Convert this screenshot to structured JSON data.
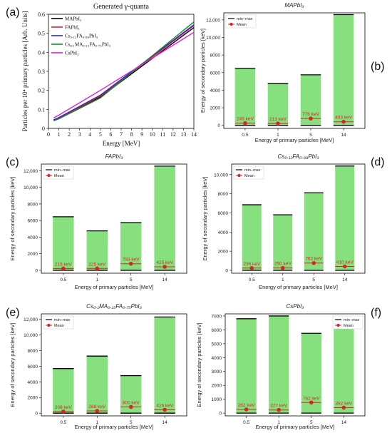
{
  "panel_labels": [
    "(a)",
    "(b)",
    "(c)",
    "(d)",
    "(e)",
    "(f)"
  ],
  "chart_data": [
    {
      "type": "line",
      "panel": "(a)",
      "title": "Generated γ-quanta",
      "xlabel": "Energy [MeV]",
      "ylabel": "Particles per 10⁴ primary particles [Arb. Units]",
      "xlim": [
        0,
        14
      ],
      "ylim": [
        0,
        0.6
      ],
      "xticks": [
        "0",
        "1",
        "2",
        "3",
        "4",
        "5",
        "6",
        "7",
        "8",
        "9",
        "10",
        "11",
        "12",
        "13",
        "14"
      ],
      "yticks": [
        "0",
        "0.1",
        "0.2",
        "0.3",
        "0.4",
        "0.5",
        "0.6"
      ],
      "grid": false,
      "legend_position": "top-left",
      "series": [
        {
          "name": "MAPbI₃",
          "color": "#000000",
          "x": [
            0.5,
            1,
            5,
            14
          ],
          "y": [
            0.045,
            0.055,
            0.165,
            0.53
          ]
        },
        {
          "name": "FAPbI₃",
          "color": "#e8202a",
          "x": [
            0.5,
            1,
            5,
            14
          ],
          "y": [
            0.042,
            0.053,
            0.17,
            0.54
          ]
        },
        {
          "name": "Cs₀.₁₂FA₀.₈₈PbI₃",
          "color": "#1f2bd4",
          "x": [
            0.5,
            1,
            5,
            14
          ],
          "y": [
            0.044,
            0.057,
            0.175,
            0.545
          ]
        },
        {
          "name": "Cs₀.₁MA₀.₁₅FA₀.₇₅PbI₃",
          "color": "#1a8a2a",
          "x": [
            0.5,
            1,
            5,
            14
          ],
          "y": [
            0.04,
            0.05,
            0.16,
            0.56
          ]
        },
        {
          "name": "CsPbI₃",
          "color": "#e020e0",
          "x": [
            0.5,
            1,
            5,
            14
          ],
          "y": [
            0.055,
            0.07,
            0.2,
            0.505
          ]
        }
      ]
    },
    {
      "type": "bar",
      "panel": "(b)",
      "title": "MAPbI₃",
      "xlabel": "Energy of primary particles [MeV]",
      "ylabel": "Energy of secondary particles [keV]",
      "categories": [
        "0.5",
        "1",
        "5",
        "14"
      ],
      "ylim": [
        -350,
        12800
      ],
      "yticks": [
        0,
        2000,
        4000,
        6000,
        8000,
        10000,
        12000
      ],
      "ytick_labels": [
        "0",
        "2000",
        "4000",
        "6000",
        "8000",
        "10,000",
        "12,000"
      ],
      "max": [
        6500,
        4750,
        5750,
        12600
      ],
      "min": [
        0,
        0,
        0,
        0
      ],
      "mean": [
        249,
        213,
        776,
        403
      ],
      "mean_labels": [
        "249 keV",
        "213 keV",
        "776 keV",
        "403 keV"
      ],
      "legend": [
        "min−max",
        "Mean"
      ],
      "legend_position": "top-left"
    },
    {
      "type": "bar",
      "panel": "(c)",
      "title": "FAPbI₃",
      "xlabel": "Energy of primary particles [MeV]",
      "ylabel": "Energy of secondary particles [keV]",
      "categories": [
        "0.5",
        "1",
        "5",
        "14"
      ],
      "ylim": [
        -350,
        12800
      ],
      "yticks": [
        0,
        2000,
        4000,
        6000,
        8000,
        10000,
        12000
      ],
      "ytick_labels": [
        "0",
        "2000",
        "4000",
        "6000",
        "8000",
        "10,000",
        "12,000"
      ],
      "max": [
        6450,
        4750,
        5750,
        12550
      ],
      "min": [
        0,
        0,
        0,
        0
      ],
      "mean": [
        215,
        225,
        793,
        425
      ],
      "mean_labels": [
        "215 keV",
        "225 keV",
        "793 keV",
        "425 keV"
      ],
      "legend": [
        "min−max",
        "Mean"
      ],
      "legend_position": "top-left"
    },
    {
      "type": "bar",
      "panel": "(d)",
      "title": "Cs₀.₁₂FA₀.₈₈PbI₃",
      "xlabel": "Energy of primary particles [MeV]",
      "ylabel": "Energy of secondary particles [keV]",
      "categories": [
        "0.5",
        "1",
        "5",
        "14"
      ],
      "ylim": [
        -300,
        11100
      ],
      "yticks": [
        0,
        2000,
        4000,
        6000,
        8000,
        10000
      ],
      "ytick_labels": [
        "0",
        "2000",
        "4000",
        "6000",
        "8000",
        "10,000"
      ],
      "max": [
        6850,
        5800,
        8100,
        10900
      ],
      "min": [
        0,
        0,
        0,
        0
      ],
      "mean": [
        236,
        250,
        762,
        410
      ],
      "mean_labels": [
        "236 keV",
        "250 keV",
        "762 keV",
        "410 keV"
      ],
      "legend": [
        "min−max",
        "Mean"
      ],
      "legend_position": "top-left"
    },
    {
      "type": "bar",
      "panel": "(e)",
      "title": "Cs₀.₁MA₀.₁₅FA₀.₇₅PbI₃",
      "xlabel": "Energy of primary particles [MeV]",
      "ylabel": "Energy of secondary particles [keV]",
      "categories": [
        "0.5",
        "1",
        "5",
        "14"
      ],
      "ylim": [
        -350,
        12700
      ],
      "yticks": [
        0,
        2000,
        4000,
        6000,
        8000,
        10000,
        12000
      ],
      "ytick_labels": [
        "0",
        "2000",
        "4000",
        "6000",
        "8000",
        "10,000",
        "12,000"
      ],
      "max": [
        5700,
        7300,
        4800,
        12300
      ],
      "min": [
        0,
        0,
        0,
        0
      ],
      "mean": [
        208,
        288,
        800,
        426
      ],
      "mean_labels": [
        "208 keV",
        "288 keV",
        "800 keV",
        "426 keV"
      ],
      "legend": [
        "min−max",
        "Mean"
      ],
      "legend_position": "top-left"
    },
    {
      "type": "bar",
      "panel": "(f)",
      "title": "CsPbI₃",
      "xlabel": "Energy of primary particles [MeV]",
      "ylabel": "Energy of secondary particles [keV]",
      "categories": [
        "0.5",
        "1",
        "5",
        "14"
      ],
      "ylim": [
        -200,
        7150
      ],
      "yticks": [
        0,
        1000,
        2000,
        3000,
        4000,
        5000,
        6000,
        7000
      ],
      "ytick_labels": [
        "0",
        "1000",
        "2000",
        "3000",
        "4000",
        "5000",
        "6000",
        "7000"
      ],
      "max": [
        6800,
        7000,
        5750,
        6650
      ],
      "min": [
        0,
        0,
        0,
        0
      ],
      "mean": [
        262,
        227,
        762,
        392
      ],
      "mean_labels": [
        "262 keV",
        "227 keV",
        "762 keV",
        "392 keV"
      ],
      "legend": [
        "min−max",
        "Mean"
      ],
      "legend_position": "top-right"
    }
  ],
  "colors": {
    "bar_fill": "#86e07e",
    "minmax_line": "#000000",
    "mean_marker": "#d62728"
  }
}
